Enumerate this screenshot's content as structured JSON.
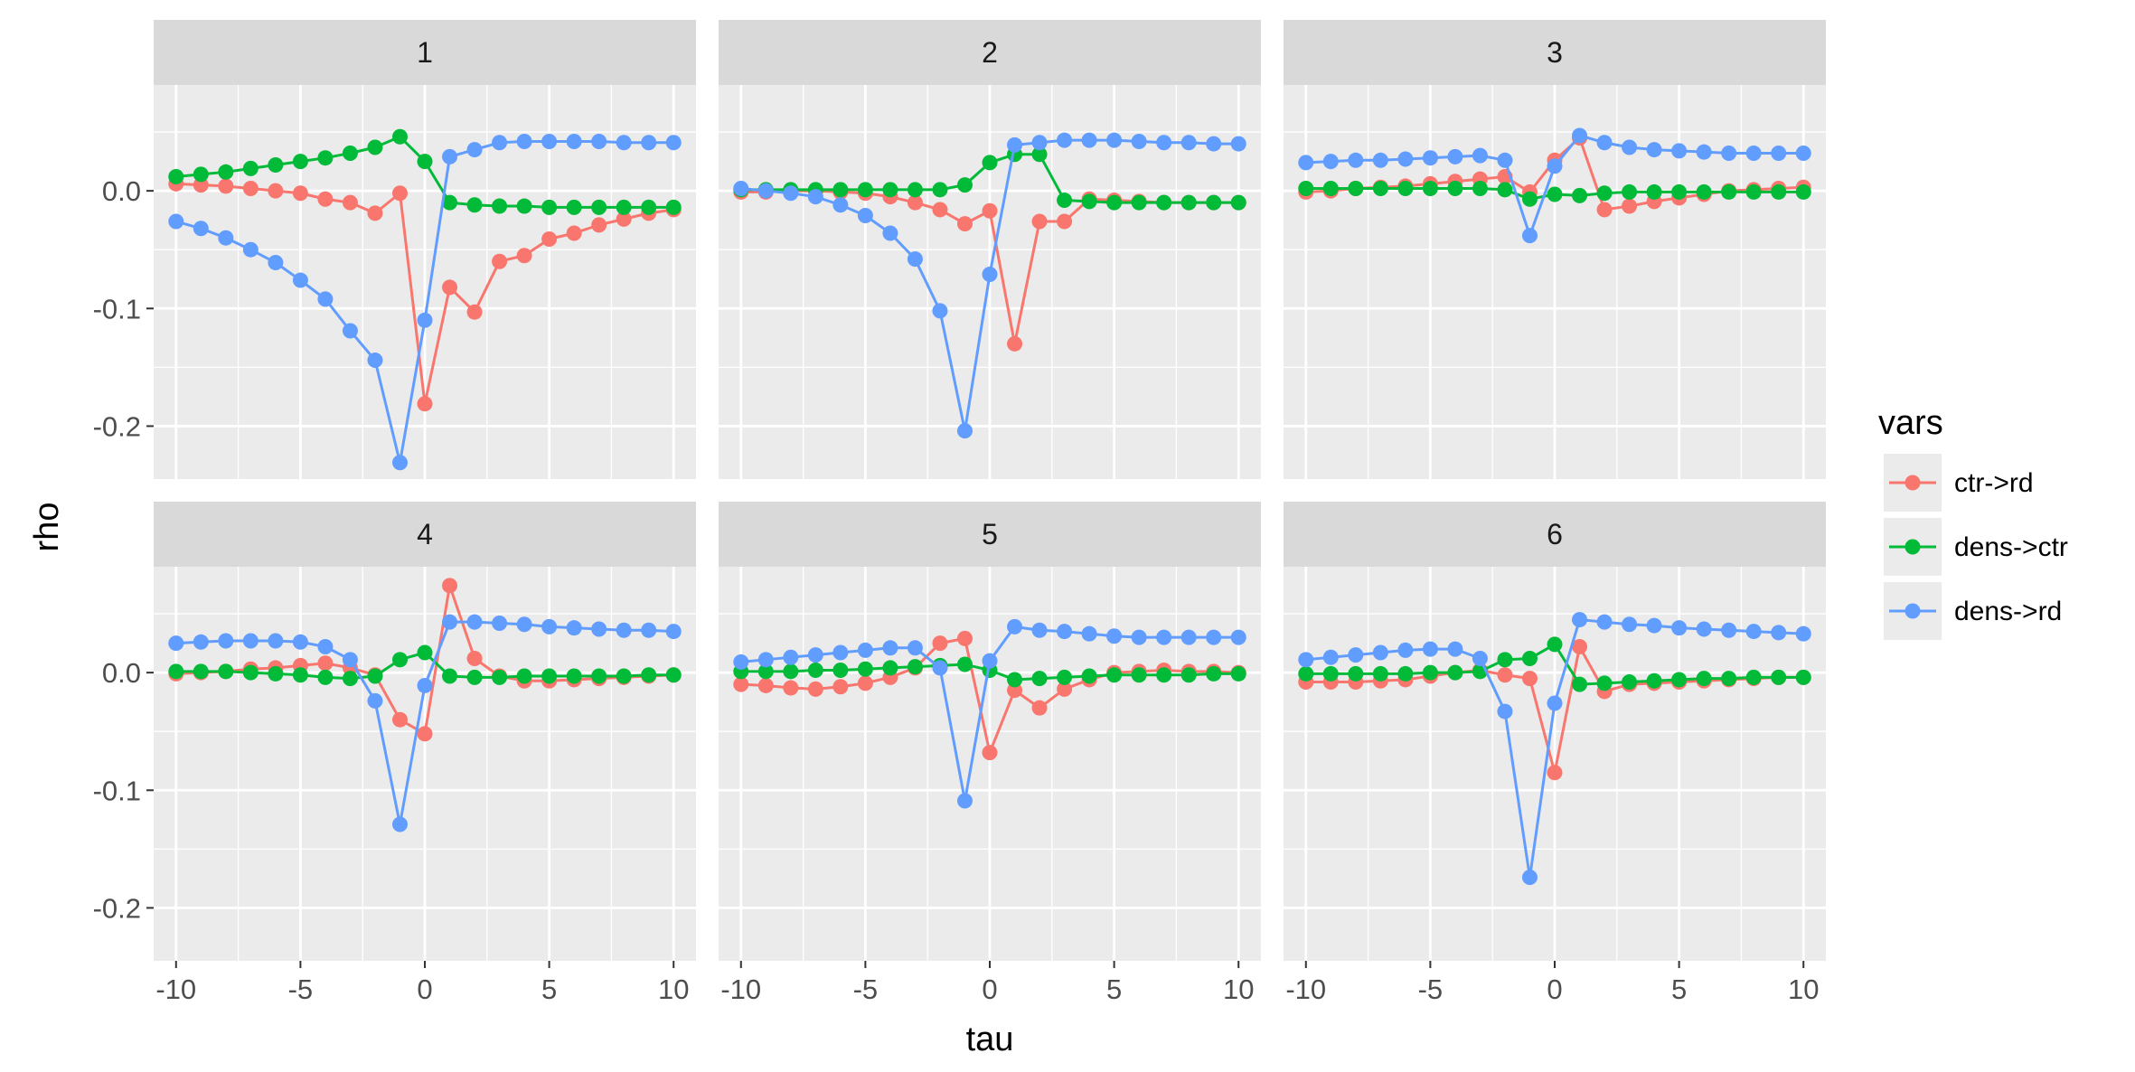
{
  "chart_data": {
    "type": "line",
    "facets": [
      "1",
      "2",
      "3",
      "4",
      "5",
      "6"
    ],
    "xlabel": "tau",
    "ylabel": "rho",
    "xlim": [
      -10.9,
      10.9
    ],
    "ylim": [
      -0.245,
      0.09
    ],
    "x_ticks": [
      -10,
      -5,
      0,
      5,
      10
    ],
    "x_tick_labels": [
      "-10",
      "-5",
      "0",
      "5",
      "10"
    ],
    "y_ticks": [
      -0.2,
      -0.1,
      0.0
    ],
    "y_tick_labels": [
      "-0.2",
      "-0.1",
      "0.0"
    ],
    "grid": true,
    "legend": {
      "title": "vars",
      "position": "right",
      "entries": [
        "ctr->rd",
        "dens->ctr",
        "dens->rd"
      ]
    },
    "colors": {
      "ctr->rd": "#F8766D",
      "dens->ctr": "#00BA38",
      "dens->rd": "#619CFF",
      "panel_bg": "#EBEBEB",
      "strip_bg": "#D9D9D9",
      "grid": "#FFFFFF"
    },
    "x": [
      -10,
      -9,
      -8,
      -7,
      -6,
      -5,
      -4,
      -3,
      -2,
      -1,
      0,
      1,
      2,
      3,
      4,
      5,
      6,
      7,
      8,
      9,
      10
    ],
    "panels": [
      {
        "facet": "1",
        "series": [
          {
            "name": "ctr->rd",
            "values": [
              0.006,
              0.005,
              0.004,
              0.002,
              0.0,
              -0.002,
              -0.007,
              -0.01,
              -0.019,
              -0.002,
              -0.181,
              -0.082,
              -0.103,
              -0.06,
              -0.055,
              -0.041,
              -0.036,
              -0.029,
              -0.024,
              -0.019,
              -0.016
            ]
          },
          {
            "name": "dens->ctr",
            "values": [
              0.012,
              0.014,
              0.016,
              0.019,
              0.022,
              0.025,
              0.028,
              0.032,
              0.037,
              0.046,
              0.025,
              -0.01,
              -0.012,
              -0.013,
              -0.013,
              -0.014,
              -0.014,
              -0.014,
              -0.014,
              -0.014,
              -0.014
            ]
          },
          {
            "name": "dens->rd",
            "values": [
              -0.026,
              -0.032,
              -0.04,
              -0.05,
              -0.061,
              -0.076,
              -0.092,
              -0.119,
              -0.144,
              -0.231,
              -0.11,
              0.029,
              0.035,
              0.041,
              0.042,
              0.042,
              0.042,
              0.042,
              0.041,
              0.041,
              0.041
            ]
          }
        ]
      },
      {
        "facet": "2",
        "series": [
          {
            "name": "ctr->rd",
            "values": [
              -0.001,
              -0.001,
              0.0,
              0.0,
              -0.001,
              -0.002,
              -0.005,
              -0.01,
              -0.016,
              -0.028,
              -0.017,
              -0.13,
              -0.026,
              -0.026,
              -0.007,
              -0.008,
              -0.009,
              -0.01,
              -0.01,
              -0.01,
              -0.01
            ]
          },
          {
            "name": "dens->ctr",
            "values": [
              0.001,
              0.001,
              0.001,
              0.001,
              0.001,
              0.001,
              0.001,
              0.001,
              0.001,
              0.005,
              0.024,
              0.031,
              0.031,
              -0.008,
              -0.009,
              -0.01,
              -0.01,
              -0.01,
              -0.01,
              -0.01,
              -0.01
            ]
          },
          {
            "name": "dens->rd",
            "values": [
              0.002,
              0.0,
              -0.002,
              -0.005,
              -0.012,
              -0.021,
              -0.036,
              -0.058,
              -0.102,
              -0.204,
              -0.071,
              0.039,
              0.041,
              0.043,
              0.043,
              0.043,
              0.042,
              0.041,
              0.041,
              0.04,
              0.04
            ]
          }
        ]
      },
      {
        "facet": "3",
        "series": [
          {
            "name": "ctr->rd",
            "values": [
              -0.001,
              0.0,
              0.002,
              0.003,
              0.004,
              0.006,
              0.008,
              0.01,
              0.012,
              -0.001,
              0.026,
              0.045,
              -0.016,
              -0.013,
              -0.009,
              -0.006,
              -0.003,
              0.0,
              0.001,
              0.002,
              0.003
            ]
          },
          {
            "name": "dens->ctr",
            "values": [
              0.002,
              0.002,
              0.002,
              0.002,
              0.002,
              0.002,
              0.002,
              0.002,
              0.001,
              -0.007,
              -0.003,
              -0.004,
              -0.002,
              -0.001,
              -0.001,
              -0.001,
              -0.001,
              -0.001,
              -0.001,
              -0.001,
              -0.001
            ]
          },
          {
            "name": "dens->rd",
            "values": [
              0.024,
              0.025,
              0.026,
              0.026,
              0.027,
              0.028,
              0.029,
              0.03,
              0.026,
              -0.038,
              0.021,
              0.047,
              0.041,
              0.037,
              0.035,
              0.034,
              0.033,
              0.032,
              0.032,
              0.032,
              0.032
            ]
          }
        ]
      },
      {
        "facet": "4",
        "series": [
          {
            "name": "ctr->rd",
            "values": [
              -0.001,
              0.0,
              0.001,
              0.003,
              0.004,
              0.006,
              0.008,
              0.004,
              -0.002,
              -0.04,
              -0.052,
              0.074,
              0.012,
              -0.003,
              -0.007,
              -0.007,
              -0.006,
              -0.005,
              -0.004,
              -0.003,
              -0.002
            ]
          },
          {
            "name": "dens->ctr",
            "values": [
              0.001,
              0.001,
              0.001,
              0.0,
              -0.001,
              -0.002,
              -0.004,
              -0.005,
              -0.003,
              0.011,
              0.017,
              -0.003,
              -0.004,
              -0.004,
              -0.003,
              -0.003,
              -0.003,
              -0.003,
              -0.003,
              -0.002,
              -0.002
            ]
          },
          {
            "name": "dens->rd",
            "values": [
              0.025,
              0.026,
              0.027,
              0.027,
              0.027,
              0.026,
              0.022,
              0.011,
              -0.024,
              -0.129,
              -0.011,
              0.043,
              0.043,
              0.042,
              0.041,
              0.039,
              0.038,
              0.037,
              0.036,
              0.036,
              0.035
            ]
          }
        ]
      },
      {
        "facet": "5",
        "series": [
          {
            "name": "ctr->rd",
            "values": [
              -0.01,
              -0.011,
              -0.013,
              -0.014,
              -0.012,
              -0.009,
              -0.004,
              0.004,
              0.025,
              0.029,
              -0.068,
              -0.015,
              -0.03,
              -0.014,
              -0.006,
              0.0,
              0.001,
              0.002,
              0.001,
              0.001,
              0.0
            ]
          },
          {
            "name": "dens->ctr",
            "values": [
              0.001,
              0.001,
              0.001,
              0.002,
              0.002,
              0.003,
              0.004,
              0.005,
              0.006,
              0.007,
              0.002,
              -0.006,
              -0.005,
              -0.004,
              -0.003,
              -0.002,
              -0.002,
              -0.002,
              -0.002,
              -0.001,
              -0.001
            ]
          },
          {
            "name": "dens->rd",
            "values": [
              0.009,
              0.011,
              0.013,
              0.015,
              0.017,
              0.019,
              0.021,
              0.021,
              0.004,
              -0.109,
              0.01,
              0.039,
              0.036,
              0.035,
              0.033,
              0.031,
              0.03,
              0.03,
              0.03,
              0.03,
              0.03
            ]
          }
        ]
      },
      {
        "facet": "6",
        "series": [
          {
            "name": "ctr->rd",
            "values": [
              -0.008,
              -0.008,
              -0.008,
              -0.007,
              -0.006,
              -0.003,
              0.0,
              0.002,
              -0.002,
              -0.005,
              -0.085,
              0.022,
              -0.016,
              -0.01,
              -0.009,
              -0.008,
              -0.007,
              -0.006,
              -0.005,
              -0.004,
              -0.004
            ]
          },
          {
            "name": "dens->ctr",
            "values": [
              -0.001,
              -0.001,
              -0.001,
              -0.001,
              -0.001,
              0.0,
              0.0,
              0.001,
              0.011,
              0.012,
              0.024,
              -0.01,
              -0.009,
              -0.008,
              -0.007,
              -0.006,
              -0.005,
              -0.005,
              -0.004,
              -0.004,
              -0.004
            ]
          },
          {
            "name": "dens->rd",
            "values": [
              0.011,
              0.013,
              0.015,
              0.017,
              0.019,
              0.02,
              0.02,
              0.012,
              -0.033,
              -0.174,
              -0.026,
              0.045,
              0.043,
              0.041,
              0.04,
              0.038,
              0.037,
              0.036,
              0.035,
              0.034,
              0.033
            ]
          }
        ]
      }
    ]
  }
}
